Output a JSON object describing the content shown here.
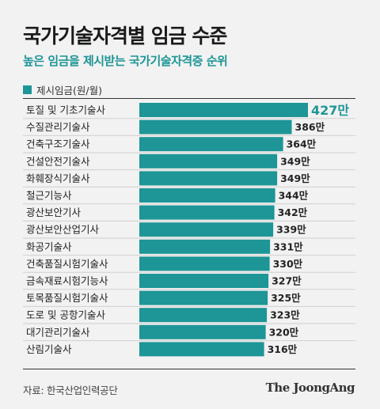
{
  "chart_data": {
    "type": "bar",
    "orientation": "horizontal",
    "title": "국가기술자격별 임금 수준",
    "subtitle": "높은 임금을 제시받는 국가기술자격증 순위",
    "legend": "제시임금(원/월)",
    "value_suffix": "만",
    "categories": [
      "토질 및 기초기술사",
      "수질관리기술사",
      "건축구조기술사",
      "건설안전기술사",
      "화훼장식기술사",
      "철근기능사",
      "광산보안기사",
      "광산보안산업기사",
      "화공기술사",
      "건축품질시험기술사",
      "금속재료시험기능사",
      "토목품질시험기술사",
      "도로 및 공항기술사",
      "대기관리기술사",
      "산림기술사"
    ],
    "values": [
      427,
      386,
      364,
      349,
      349,
      344,
      342,
      339,
      331,
      330,
      327,
      325,
      323,
      320,
      316
    ],
    "value_labels": [
      "427만",
      "386만",
      "364만",
      "349만",
      "349만",
      "344만",
      "342만",
      "339만",
      "331만",
      "330만",
      "327만",
      "325만",
      "323만",
      "320만",
      "316만"
    ],
    "bar_color": "#1e9596"
  },
  "footer": {
    "source": "자료: 한국산업인력공단",
    "brand": "The JoongAng"
  }
}
